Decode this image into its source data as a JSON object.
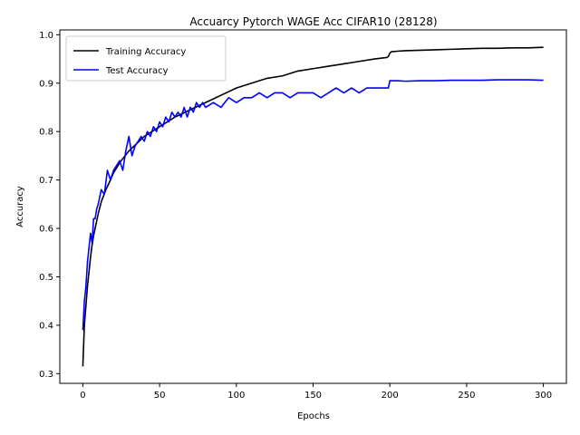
{
  "chart_data": {
    "type": "line",
    "title": "Accuarcy Pytorch WAGE Acc CIFAR10 (28128)",
    "xlabel": "Epochs",
    "ylabel": "Accuracy",
    "xlim": [
      -15,
      315
    ],
    "ylim": [
      0.28,
      1.01
    ],
    "xticks": [
      0,
      50,
      100,
      150,
      200,
      250,
      300
    ],
    "xtick_labels": [
      "0",
      "50",
      "100",
      "150",
      "200",
      "250",
      "300"
    ],
    "yticks": [
      0.3,
      0.4,
      0.5,
      0.6,
      0.7,
      0.8,
      0.9,
      1.0
    ],
    "ytick_labels": [
      "0.3",
      "0.4",
      "0.5",
      "0.6",
      "0.7",
      "0.8",
      "0.9",
      "1.0"
    ],
    "grid": false,
    "legend_position": "top-left",
    "series": [
      {
        "name": "Training Accuracy",
        "color": "#000000",
        "x": [
          0,
          1,
          2,
          3,
          4,
          5,
          6,
          7,
          8,
          10,
          12,
          15,
          18,
          20,
          25,
          30,
          35,
          40,
          45,
          50,
          55,
          60,
          70,
          80,
          90,
          100,
          110,
          120,
          130,
          140,
          150,
          160,
          170,
          180,
          190,
          198,
          199,
          200,
          201,
          205,
          210,
          220,
          230,
          240,
          250,
          260,
          270,
          280,
          290,
          300
        ],
        "y": [
          0.315,
          0.4,
          0.44,
          0.48,
          0.51,
          0.54,
          0.565,
          0.585,
          0.6,
          0.63,
          0.655,
          0.68,
          0.7,
          0.715,
          0.74,
          0.76,
          0.775,
          0.79,
          0.8,
          0.81,
          0.82,
          0.83,
          0.845,
          0.86,
          0.875,
          0.89,
          0.9,
          0.91,
          0.915,
          0.925,
          0.93,
          0.935,
          0.94,
          0.945,
          0.95,
          0.953,
          0.955,
          0.962,
          0.965,
          0.966,
          0.967,
          0.968,
          0.969,
          0.97,
          0.971,
          0.972,
          0.972,
          0.973,
          0.973,
          0.974
        ]
      },
      {
        "name": "Test Accuracy",
        "color": "#0000ff",
        "x": [
          0,
          1,
          2,
          3,
          4,
          5,
          6,
          7,
          8,
          9,
          10,
          12,
          14,
          16,
          18,
          20,
          22,
          24,
          26,
          28,
          30,
          32,
          34,
          36,
          38,
          40,
          42,
          44,
          46,
          48,
          50,
          52,
          54,
          56,
          58,
          60,
          62,
          64,
          66,
          68,
          70,
          72,
          74,
          76,
          78,
          80,
          85,
          90,
          95,
          100,
          105,
          110,
          115,
          120,
          125,
          130,
          135,
          140,
          145,
          150,
          155,
          160,
          165,
          170,
          175,
          180,
          185,
          190,
          195,
          199,
          200,
          202,
          205,
          210,
          220,
          230,
          240,
          250,
          260,
          270,
          280,
          290,
          300
        ],
        "y": [
          0.39,
          0.45,
          0.48,
          0.53,
          0.56,
          0.59,
          0.57,
          0.62,
          0.62,
          0.64,
          0.65,
          0.68,
          0.67,
          0.72,
          0.7,
          0.72,
          0.73,
          0.74,
          0.72,
          0.76,
          0.79,
          0.75,
          0.77,
          0.78,
          0.79,
          0.78,
          0.8,
          0.79,
          0.81,
          0.8,
          0.82,
          0.81,
          0.83,
          0.82,
          0.84,
          0.83,
          0.84,
          0.83,
          0.85,
          0.83,
          0.85,
          0.84,
          0.86,
          0.85,
          0.86,
          0.85,
          0.86,
          0.85,
          0.87,
          0.86,
          0.87,
          0.87,
          0.88,
          0.87,
          0.88,
          0.88,
          0.87,
          0.88,
          0.88,
          0.88,
          0.87,
          0.88,
          0.89,
          0.88,
          0.89,
          0.88,
          0.89,
          0.89,
          0.89,
          0.89,
          0.905,
          0.905,
          0.905,
          0.904,
          0.905,
          0.905,
          0.906,
          0.906,
          0.906,
          0.907,
          0.907,
          0.907,
          0.906
        ]
      }
    ]
  }
}
